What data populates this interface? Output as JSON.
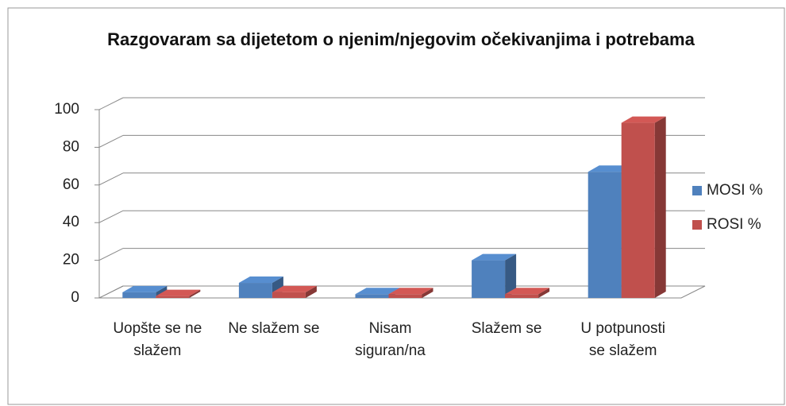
{
  "chart_data": {
    "type": "bar3d",
    "title": "Razgovaram sa dijetetom o njenim/njegovim očekivanjima i potrebama",
    "categories": [
      "Uopšte se ne slažem",
      "Ne slažem se",
      "Nisam siguran/na",
      "Slažem se",
      "U potpunosti se slažem"
    ],
    "series": [
      {
        "name": "MOSI %",
        "color": "#4f81bd",
        "values": [
          3,
          8,
          2,
          20,
          67
        ]
      },
      {
        "name": "ROSI %",
        "color": "#c0504d",
        "values": [
          1,
          3,
          2,
          2,
          93
        ]
      }
    ],
    "ylim": [
      0,
      100
    ],
    "yticks": [
      0,
      20,
      40,
      60,
      80,
      100
    ],
    "grid": true,
    "legend": "right"
  }
}
